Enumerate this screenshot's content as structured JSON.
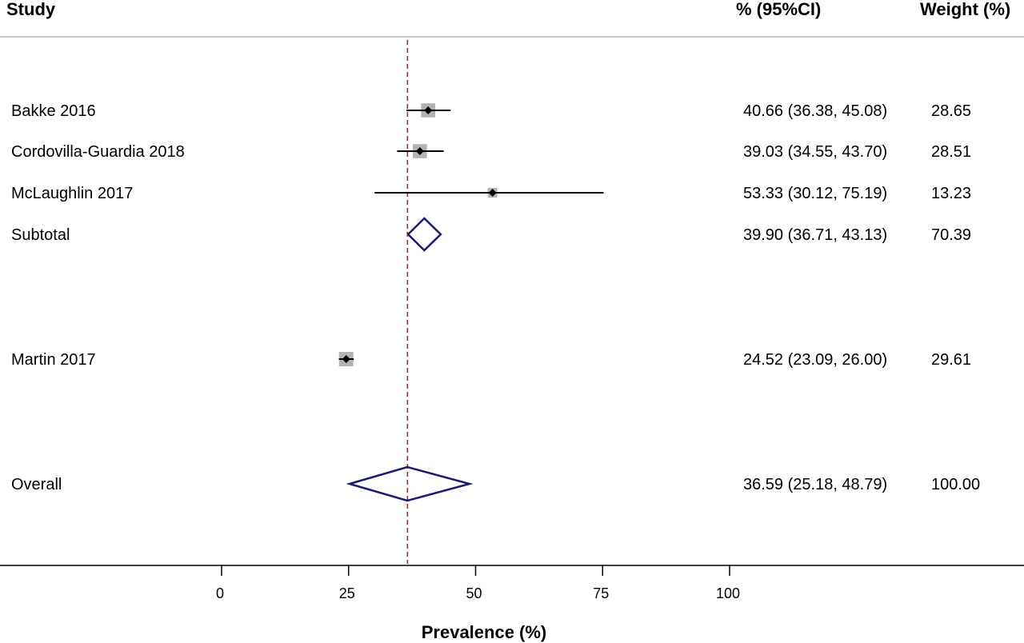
{
  "chart_data": {
    "type": "forest",
    "headers": {
      "study": "Study",
      "ci": "% (95%CI)",
      "weight": "Weight (%)"
    },
    "xlabel": "Prevalence (%)",
    "xlim": [
      0,
      100
    ],
    "ticks": [
      0,
      25,
      50,
      75,
      100
    ],
    "reference_line": 36.59,
    "rows": [
      {
        "kind": "study",
        "label": "Bakke 2016",
        "est": 40.66,
        "lo": 36.38,
        "hi": 45.08,
        "ci_text": "40.66 (36.38, 45.08)",
        "weight": 28.65,
        "weight_text": "28.65"
      },
      {
        "kind": "study",
        "label": "Cordovilla-Guardia 2018",
        "est": 39.03,
        "lo": 34.55,
        "hi": 43.7,
        "ci_text": "39.03 (34.55, 43.70)",
        "weight": 28.51,
        "weight_text": "28.51"
      },
      {
        "kind": "study",
        "label": "McLaughlin 2017",
        "est": 53.33,
        "lo": 30.12,
        "hi": 75.19,
        "ci_text": "53.33 (30.12, 75.19)",
        "weight": 13.23,
        "weight_text": "13.23"
      },
      {
        "kind": "subtotal",
        "label": "Subtotal",
        "est": 39.9,
        "lo": 36.71,
        "hi": 43.13,
        "ci_text": "39.90 (36.71, 43.13)",
        "weight": 70.39,
        "weight_text": "70.39"
      },
      {
        "kind": "study",
        "label": "Martin 2017",
        "est": 24.52,
        "lo": 23.09,
        "hi": 26.0,
        "ci_text": "24.52 (23.09, 26.00)",
        "weight": 29.61,
        "weight_text": "29.61"
      },
      {
        "kind": "overall",
        "label": "Overall",
        "est": 36.59,
        "lo": 25.18,
        "hi": 48.79,
        "ci_text": "36.59 (25.18, 48.79)",
        "weight": 100.0,
        "weight_text": "100.00"
      }
    ],
    "colors": {
      "diamond": "#1a1a6e",
      "box": "#b3b3b3",
      "ref_line": "#a52a2a",
      "axis": "#000000",
      "rule": "#c8c8c8"
    }
  }
}
